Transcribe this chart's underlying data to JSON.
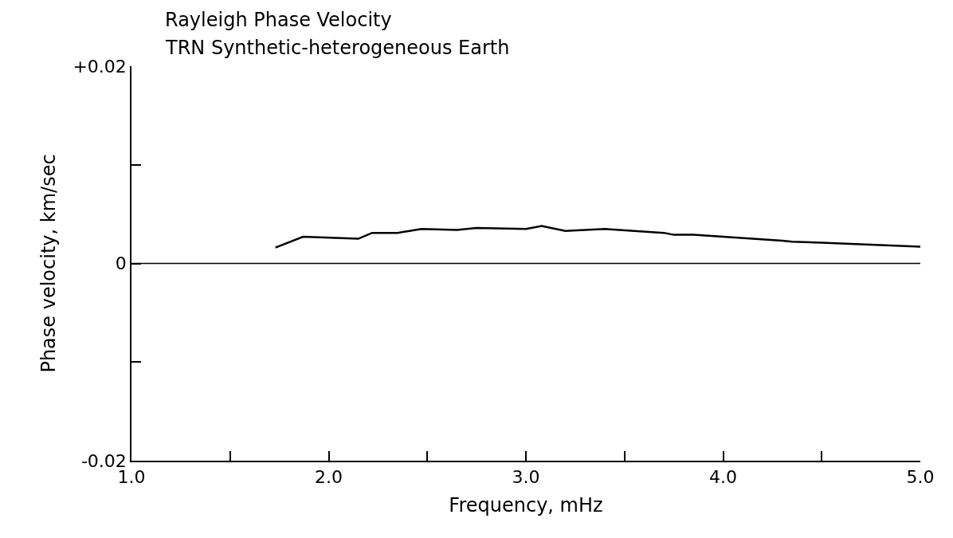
{
  "chart_data": {
    "type": "line",
    "title": "Rayleigh Phase Velocity",
    "subtitle": "TRN Synthetic-heterogeneous Earth",
    "xlabel": "Frequency, mHz",
    "ylabel": "Phase velocity, km/sec",
    "x": [
      1.73,
      1.87,
      2.15,
      2.22,
      2.35,
      2.47,
      2.65,
      2.75,
      3.0,
      3.08,
      3.2,
      3.4,
      3.7,
      3.75,
      3.85,
      4.0,
      4.3,
      4.35,
      4.5,
      4.75,
      5.0
    ],
    "series": [
      {
        "color": "#000000",
        "values": [
          0.0016,
          0.0027,
          0.0025,
          0.0031,
          0.0031,
          0.0035,
          0.0034,
          0.0036,
          0.0035,
          0.0038,
          0.0033,
          0.0035,
          0.0031,
          0.0029,
          0.0029,
          0.0027,
          0.0023,
          0.0022,
          0.0021,
          0.0019,
          0.0017
        ]
      }
    ],
    "xlim": [
      1.0,
      5.0
    ],
    "xticks": [
      {
        "value": 1,
        "label": "1.0"
      },
      {
        "value": 1.5,
        "label": null
      },
      {
        "value": 2,
        "label": "2.0"
      },
      {
        "value": 2.5,
        "label": null
      },
      {
        "value": 3,
        "label": "3.0"
      },
      {
        "value": 3.5,
        "label": null
      },
      {
        "value": 4,
        "label": "4.0"
      },
      {
        "value": 4.5,
        "label": null
      },
      {
        "value": 5,
        "label": "5.0"
      }
    ],
    "ylim": [
      -0.02,
      0.02
    ],
    "yticks": [
      {
        "value": -0.02,
        "label": "-0.02"
      },
      {
        "value": -0.01,
        "label": null
      },
      {
        "value": 0,
        "label": "0"
      },
      {
        "value": 0.01,
        "label": null
      },
      {
        "value": 0.02,
        "label": "+0.02"
      }
    ],
    "ref_lines": [
      {
        "axis": "y",
        "value": 0,
        "color": "#000000"
      }
    ],
    "marker": "none",
    "line_style": "solid"
  }
}
